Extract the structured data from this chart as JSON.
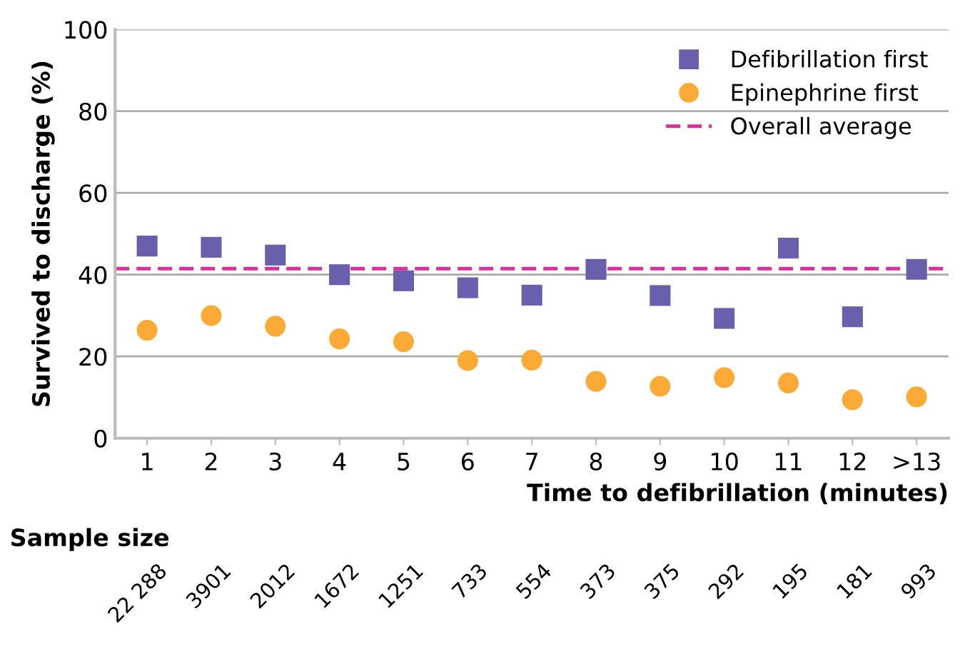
{
  "chart_data": {
    "type": "scatter",
    "xlabel": "Time to defibrillation (minutes)",
    "ylabel": "Survived to discharge (%)",
    "categories": [
      "1",
      "2",
      "3",
      "4",
      "5",
      "6",
      "7",
      "8",
      "9",
      "10",
      "11",
      "12",
      ">13"
    ],
    "series": [
      {
        "name": "Defibrillation first",
        "color": "#6a5fad",
        "marker": "square",
        "values": [
          47,
          46.7,
          44.8,
          40,
          38.5,
          36.8,
          35,
          41.3,
          34.9,
          29.3,
          46.5,
          29.7,
          41.3
        ]
      },
      {
        "name": "Epinephrine first",
        "color": "#fbab35",
        "marker": "circle",
        "values": [
          26.4,
          30,
          27.4,
          24.3,
          23.6,
          19,
          19.1,
          13.9,
          12.7,
          14.8,
          13.5,
          9.4,
          10.1
        ]
      }
    ],
    "ref_lines": [
      {
        "axis": "y",
        "value": 41.5,
        "label": "Overall average",
        "color": "#d6309a",
        "line_style": "dashed"
      }
    ],
    "ylim": [
      0,
      100
    ],
    "yticks": [
      0,
      20,
      40,
      60,
      80,
      100
    ],
    "grid": "y",
    "legend": "top right",
    "annotations": [
      "Sample size",
      "22 288",
      "3901",
      "2012",
      "1672",
      "1251",
      "733",
      "554",
      "373",
      "375",
      "292",
      "195",
      "181",
      "993"
    ]
  }
}
